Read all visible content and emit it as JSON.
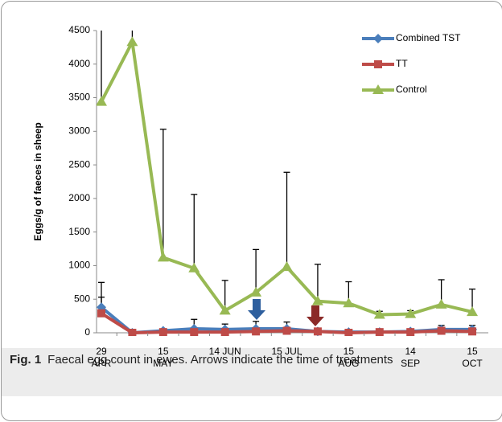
{
  "chart_data": {
    "type": "line",
    "y_label": "Eggs/g of faeces in sheep",
    "categories": [
      "29 APR",
      null,
      "15 MAY",
      null,
      "14 JUN",
      null,
      "15 JUL",
      null,
      "15 AUG",
      null,
      "14 SEP",
      null,
      "15 OCT"
    ],
    "series": [
      {
        "name": "Combined TST",
        "color": "#4a7ebb",
        "marker": "diamond",
        "values": [
          380,
          0,
          30,
          60,
          50,
          60,
          60,
          20,
          10,
          10,
          20,
          50,
          50
        ],
        "errors": [
          370,
          0,
          20,
          140,
          80,
          110,
          100,
          30,
          10,
          10,
          20,
          60,
          60
        ]
      },
      {
        "name": "TT",
        "color": "#be4b48",
        "marker": "square",
        "values": [
          290,
          0,
          10,
          10,
          10,
          20,
          30,
          20,
          0,
          10,
          10,
          30,
          20
        ],
        "errors": [
          240,
          0,
          10,
          40,
          30,
          40,
          50,
          20,
          0,
          10,
          10,
          40,
          30
        ]
      },
      {
        "name": "Control",
        "color": "#98b954",
        "marker": "triangle",
        "values": [
          3440,
          4330,
          1120,
          960,
          330,
          600,
          980,
          470,
          440,
          270,
          280,
          420,
          310
        ],
        "errors": [
          1500,
          500,
          1910,
          1100,
          450,
          640,
          1410,
          550,
          320,
          50,
          50,
          370,
          340
        ]
      }
    ],
    "ylim": [
      0,
      4500
    ],
    "yticks": [
      0,
      500,
      1000,
      1500,
      2000,
      2500,
      3000,
      3500,
      4000,
      4500
    ],
    "legend": "upper right",
    "grid": false
  },
  "caption": {
    "label": "Fig. 1",
    "text": "Faecal egg count in ewes. Arrows indicate the time of treatments"
  }
}
